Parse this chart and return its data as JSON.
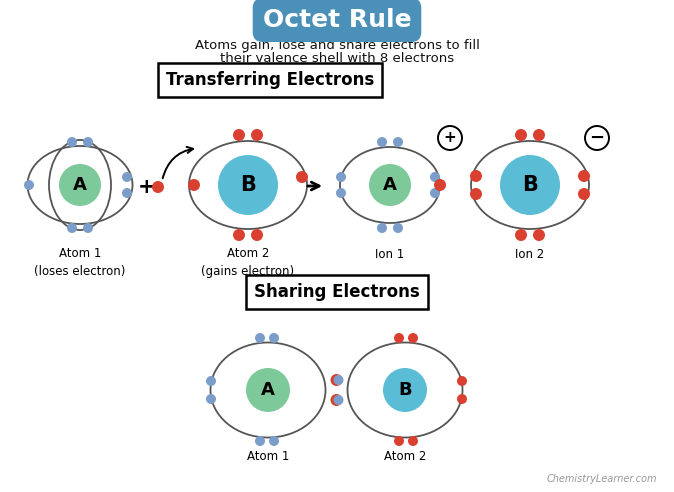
{
  "title": "Octet Rule",
  "title_bg": "#4a90b8",
  "subtitle_line1": "Atoms gain, lose and share electrons to fill",
  "subtitle_line2": "their valence shell with 8 electrons",
  "section1_title": "Transferring Electrons",
  "section2_title": "Sharing Electrons",
  "atom1_label": "A",
  "atom2_label": "B",
  "ion1_label": "A",
  "ion2_label": "B",
  "atom1_color": "#7dc99a",
  "atom2_color": "#5bbcd6",
  "atom1_caption": "Atom 1\n(loses electron)",
  "atom2_caption": "Atom 2\n(gains electron)",
  "ion1_caption": "Ion 1",
  "ion2_caption": "Ion 2",
  "share_atom1_caption": "Atom 1",
  "share_atom2_caption": "Atom 2",
  "blue_e": "#7b9dc9",
  "red_e": "#d94030",
  "orbit_color": "#555555",
  "bg_color": "#ffffff",
  "watermark": "ChemistryLearner.com"
}
